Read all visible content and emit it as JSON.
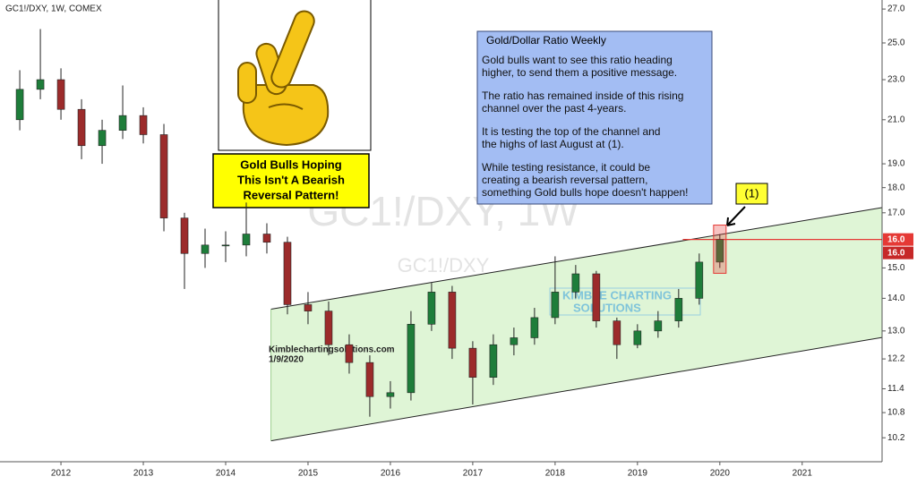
{
  "chart_data": {
    "type": "candlestick",
    "title": "GC1!/DXY, 1W, COMEX",
    "watermark": [
      "GC1!/DXY, 1W",
      "GC1!/DXY"
    ],
    "log_scale": true,
    "grid": false,
    "up_color": "#1e7d3a",
    "down_color": "#9c2b2b",
    "x": [
      2011.5,
      2011.75,
      2012,
      2012.25,
      2012.5,
      2012.75,
      2013,
      2013.25,
      2013.5,
      2013.75,
      2014,
      2014.25,
      2014.5,
      2014.75,
      2015,
      2015.25,
      2015.5,
      2015.75,
      2016,
      2016.25,
      2016.5,
      2016.75,
      2017,
      2017.25,
      2017.5,
      2017.75,
      2018,
      2018.25,
      2018.5,
      2018.75,
      2019,
      2019.25,
      2019.5,
      2019.75,
      2020
    ],
    "open": [
      21.0,
      22.5,
      23.0,
      21.5,
      19.8,
      20.5,
      21.2,
      20.3,
      16.8,
      15.5,
      15.8,
      15.8,
      16.2,
      15.9,
      13.8,
      13.6,
      12.6,
      12.1,
      11.2,
      11.3,
      13.2,
      14.2,
      12.5,
      11.7,
      12.6,
      12.8,
      13.4,
      14.2,
      14.8,
      13.3,
      12.6,
      13.0,
      13.3,
      14.0,
      15.2
    ],
    "high": [
      23.5,
      25.8,
      23.6,
      22.0,
      21.0,
      22.7,
      21.6,
      20.8,
      17.0,
      16.4,
      16.3,
      17.4,
      16.6,
      16.1,
      14.2,
      13.9,
      12.9,
      12.3,
      11.6,
      13.6,
      14.5,
      14.4,
      12.7,
      12.9,
      13.1,
      13.7,
      15.4,
      15.1,
      14.9,
      13.4,
      13.2,
      13.6,
      14.3,
      15.5,
      16.2
    ],
    "low": [
      20.5,
      22.0,
      21.0,
      19.2,
      19.0,
      20.1,
      19.9,
      16.3,
      14.3,
      15.0,
      15.2,
      15.4,
      15.5,
      13.5,
      13.2,
      12.3,
      11.8,
      10.7,
      10.9,
      11.1,
      13.0,
      12.2,
      11.0,
      11.5,
      12.3,
      12.6,
      13.2,
      14.0,
      13.1,
      12.2,
      12.5,
      12.8,
      13.1,
      13.8,
      15.0
    ],
    "close": [
      22.5,
      23.0,
      21.5,
      19.8,
      20.5,
      21.2,
      20.3,
      16.8,
      15.5,
      15.8,
      15.8,
      16.2,
      15.9,
      13.8,
      13.6,
      12.6,
      12.1,
      11.2,
      11.3,
      13.2,
      14.2,
      12.5,
      11.7,
      12.6,
      12.8,
      13.4,
      14.2,
      14.8,
      13.3,
      12.6,
      13.0,
      13.3,
      14.0,
      15.2,
      16.0
    ],
    "xlim": [
      2011.26,
      2021.97
    ],
    "xticks": [
      2012,
      2013,
      2014,
      2015,
      2016,
      2017,
      2018,
      2019,
      2020,
      2021
    ],
    "ylim": [
      9.66,
      27.56
    ],
    "yticks": [
      {
        "value": 27,
        "label": "27.0"
      },
      {
        "value": 25,
        "label": "25.0"
      },
      {
        "value": 23,
        "label": "23.0"
      },
      {
        "value": 21,
        "label": "21.0"
      },
      {
        "value": 19,
        "label": "19.0"
      },
      {
        "value": 18,
        "label": "18.0"
      },
      {
        "value": 17,
        "label": "17.0"
      },
      {
        "value": 15,
        "label": "15.0"
      },
      {
        "value": 14,
        "label": "14.0"
      },
      {
        "value": 13,
        "label": "13.0"
      },
      12.2,
      11.4,
      10.8,
      10.2
    ],
    "channel": {
      "color": "#dff5d6",
      "upper": {
        "x": [
          2014.55,
          2021.97
        ],
        "y": [
          13.66,
          17.2
        ]
      },
      "lower": {
        "x": [
          2014.55,
          2021.97
        ],
        "y": [
          10.13,
          12.81
        ]
      }
    },
    "resistance": {
      "value": 16,
      "label": "16.0",
      "x": [
        2019.55,
        2021.97
      ],
      "color": "#e53935"
    },
    "last_price": {
      "value": 16,
      "label": "16.0",
      "color": "#c62828"
    },
    "marker_label": "(1)",
    "note": {
      "title": "Gold/Dollar Ratio Weekly",
      "paragraphs": [
        [
          "Gold bulls want to see this ratio heading",
          "higher, to send them a positive message."
        ],
        [
          "The ratio has remained inside of this rising",
          "channel over the past 4-years."
        ],
        [
          "It is testing the top of the channel and",
          "the highs of last August at (1)."
        ],
        [
          "While testing resistance, it could be",
          "creating a bearish reversal pattern,",
          "something Gold bulls hope doesn't happen!"
        ]
      ]
    },
    "callout": [
      "Gold Bulls Hoping",
      "This Isn't A Bearish",
      "Reversal Pattern!"
    ],
    "source": [
      "Kimblechartingsolutions.com",
      "1/9/2020"
    ],
    "logo": [
      "KIMBLE CHARTING",
      "SOLUTIONS"
    ]
  }
}
